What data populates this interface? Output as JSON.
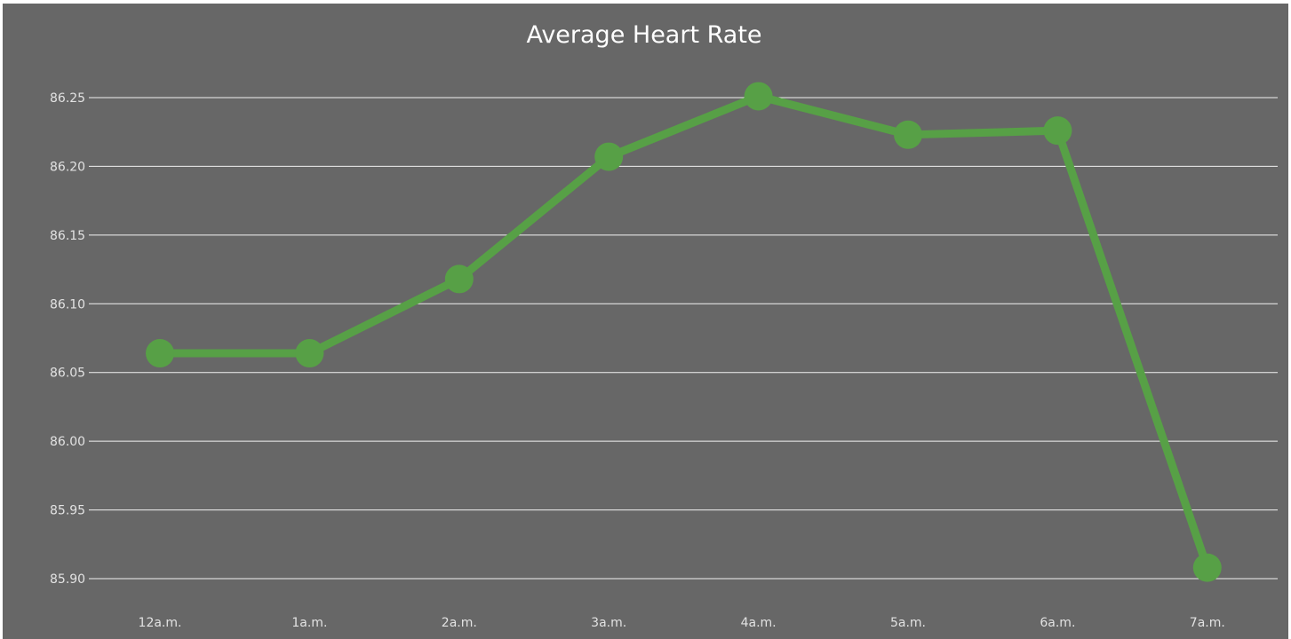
{
  "chart_data": {
    "type": "line",
    "title": "Average Heart Rate",
    "xlabel": "",
    "ylabel": "",
    "categories": [
      "12a.m.",
      "1a.m.",
      "2a.m.",
      "3a.m.",
      "4a.m.",
      "5a.m.",
      "6a.m.",
      "7a.m."
    ],
    "series": [
      {
        "values": [
          86.064,
          86.064,
          86.118,
          86.207,
          86.251,
          86.223,
          86.226,
          85.908
        ]
      }
    ],
    "y_ticks": [
      "86.25",
      "86.20",
      "86.15",
      "86.10",
      "86.05",
      "86.00",
      "85.95",
      "85.90"
    ],
    "ylim": [
      85.9,
      86.25
    ],
    "grid": true,
    "legend": "none",
    "colors": {
      "background": "#676767",
      "line": "#57a046",
      "marker": "#57a046",
      "grid": "#f2f2f2",
      "text": "#e2e2e2",
      "title": "#ffffff"
    }
  }
}
